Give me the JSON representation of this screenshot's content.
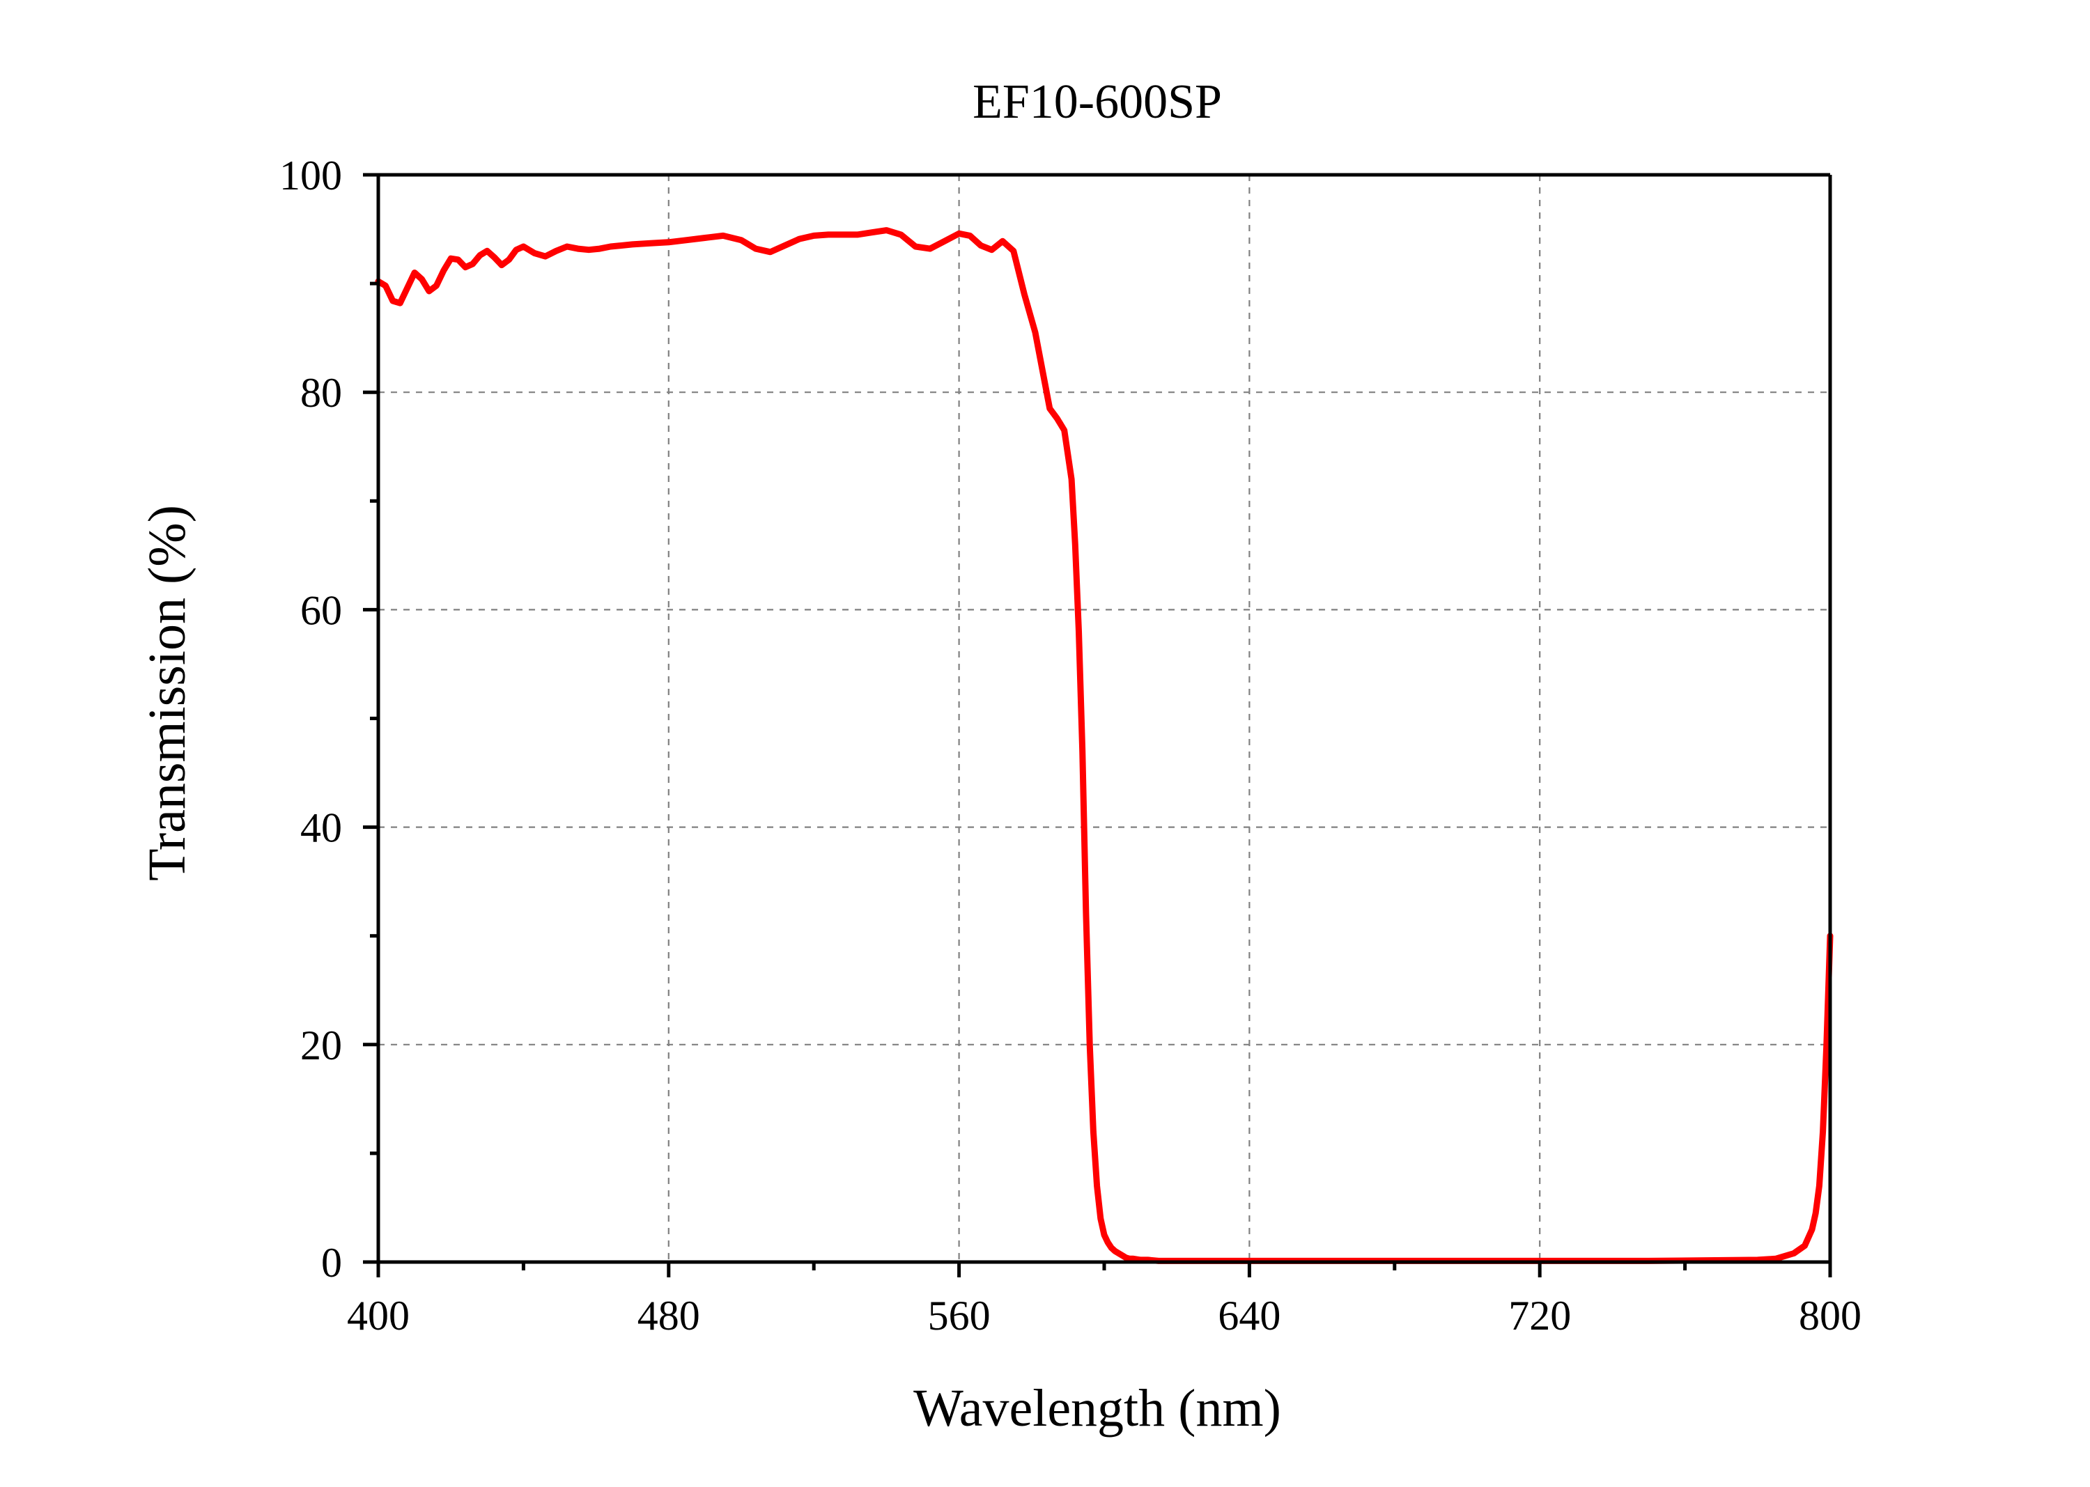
{
  "chart_data": {
    "type": "line",
    "title": "EF10-600SP",
    "xlabel": "Wavelength (nm)",
    "ylabel": "Transmission (%)",
    "xlim": [
      400,
      800
    ],
    "ylim": [
      0,
      100
    ],
    "xticks": [
      400,
      480,
      560,
      640,
      720,
      800
    ],
    "yticks": [
      0,
      20,
      40,
      60,
      80,
      100
    ],
    "grid": true,
    "legend": "none",
    "series": [
      {
        "color": "#ff0000",
        "x": [
          400,
          402,
          404,
          406,
          408,
          410,
          412,
          414,
          416,
          418,
          420,
          422,
          424,
          426,
          428,
          430,
          432,
          434,
          436,
          438,
          440,
          443,
          446,
          449,
          452,
          455,
          458,
          461,
          464,
          467,
          470,
          475,
          480,
          485,
          490,
          495,
          500,
          504,
          508,
          512,
          516,
          520,
          524,
          528,
          532,
          536,
          540,
          544,
          548,
          552,
          556,
          560,
          563,
          566,
          569,
          572,
          575,
          578,
          581,
          583,
          585,
          587,
          589,
          591,
          592,
          593,
          594,
          595,
          596,
          597,
          598,
          599,
          600,
          601,
          602,
          603,
          604,
          605,
          606,
          607,
          608,
          610,
          612,
          615,
          620,
          630,
          650,
          700,
          750,
          780,
          785,
          790,
          793,
          795,
          796,
          797,
          798,
          799,
          800
        ],
        "y": [
          90.2,
          89.8,
          88.4,
          88.2,
          89.6,
          91.0,
          90.4,
          89.3,
          89.8,
          91.2,
          92.3,
          92.2,
          91.5,
          91.8,
          92.6,
          93.0,
          92.4,
          91.7,
          92.2,
          93.1,
          93.4,
          92.8,
          92.5,
          93.0,
          93.4,
          93.2,
          93.1,
          93.2,
          93.4,
          93.5,
          93.6,
          93.7,
          93.8,
          94.0,
          94.2,
          94.4,
          94.0,
          93.2,
          92.9,
          93.5,
          94.1,
          94.4,
          94.5,
          94.5,
          94.5,
          94.7,
          94.9,
          94.5,
          93.4,
          93.2,
          93.9,
          94.6,
          94.4,
          93.5,
          93.1,
          93.9,
          93.0,
          89.0,
          85.5,
          82.0,
          78.5,
          77.6,
          76.5,
          72.0,
          66.0,
          58.0,
          47.0,
          32.0,
          20.0,
          12.0,
          7.0,
          4.0,
          2.5,
          1.8,
          1.3,
          1.0,
          0.8,
          0.6,
          0.4,
          0.3,
          0.3,
          0.2,
          0.2,
          0.1,
          0.1,
          0.1,
          0.1,
          0.1,
          0.1,
          0.2,
          0.3,
          0.8,
          1.5,
          3.0,
          4.5,
          7.0,
          12.0,
          20.0,
          30.0
        ]
      }
    ]
  }
}
